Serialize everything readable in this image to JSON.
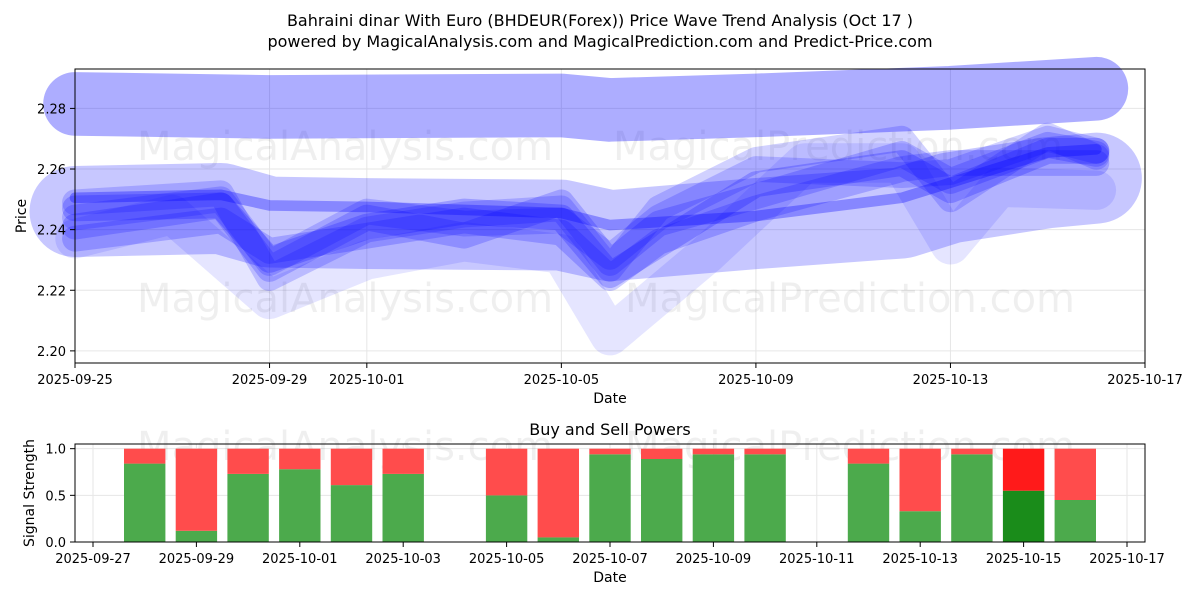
{
  "title": {
    "line1": "Bahraini dinar With Euro (BHDEUR(Forex)) Price Wave Trend Analysis (Oct 17 )",
    "line2": "powered by MagicalAnalysis.com and MagicalPrediction.com and Predict-Price.com"
  },
  "watermarks": [
    "MagicalAnalysis.com",
    "MagicalPrediction.com"
  ],
  "colors": {
    "band": "#0000ff",
    "buy": "#4caa4c",
    "sell": "#ff4c4c",
    "buy_highlight": "#1a8c1a",
    "sell_highlight": "#ff1a1a"
  },
  "chart_data": [
    {
      "type": "line",
      "title": "Price Wave Trend",
      "xlabel": "Date",
      "ylabel": "Price",
      "xlim": [
        "2025-09-25",
        "2025-10-17"
      ],
      "ylim": [
        2.196,
        2.293
      ],
      "x_ticks": [
        "2025-09-25",
        "2025-09-29",
        "2025-10-01",
        "2025-10-05",
        "2025-10-09",
        "2025-10-13",
        "2025-10-17"
      ],
      "y_ticks": [
        "2.20",
        "2.22",
        "2.24",
        "2.26",
        "2.28"
      ],
      "grid": true,
      "series": [
        {
          "name": "upper_band",
          "x": [
            "2025-09-25",
            "2025-09-29",
            "2025-10-05",
            "2025-10-06",
            "2025-10-09",
            "2025-10-13",
            "2025-10-16"
          ],
          "values": [
            2.2815,
            2.2805,
            2.281,
            2.2795,
            2.281,
            2.2835,
            2.2865
          ],
          "width": 0.021,
          "opacity": 0.32
        },
        {
          "name": "main_trend",
          "x": [
            "2025-09-25",
            "2025-09-28",
            "2025-09-29",
            "2025-10-01",
            "2025-10-05",
            "2025-10-06",
            "2025-10-09",
            "2025-10-12",
            "2025-10-13",
            "2025-10-15",
            "2025-10-16"
          ],
          "values": [
            2.246,
            2.247,
            2.2425,
            2.242,
            2.2415,
            2.238,
            2.242,
            2.2455,
            2.2505,
            2.2555,
            2.257
          ],
          "width": 0.03,
          "opacity": 0.22
        },
        {
          "name": "short_wave_1",
          "x": [
            "2025-09-25",
            "2025-09-28",
            "2025-09-29",
            "2025-10-01",
            "2025-10-03",
            "2025-10-05",
            "2025-10-06",
            "2025-10-07",
            "2025-10-09",
            "2025-10-12",
            "2025-10-13",
            "2025-10-15",
            "2025-10-16"
          ],
          "values": [
            2.247,
            2.248,
            2.23,
            2.241,
            2.246,
            2.244,
            2.225,
            2.235,
            2.255,
            2.262,
            2.253,
            2.266,
            2.266
          ],
          "width": 0.0085,
          "opacity": 0.22
        },
        {
          "name": "short_wave_2",
          "x": [
            "2025-09-25",
            "2025-09-28",
            "2025-09-29",
            "2025-10-01",
            "2025-10-03",
            "2025-10-05",
            "2025-10-06",
            "2025-10-07",
            "2025-10-09",
            "2025-10-12",
            "2025-10-13",
            "2025-10-15",
            "2025-10-16"
          ],
          "values": [
            2.241,
            2.248,
            2.227,
            2.244,
            2.238,
            2.249,
            2.229,
            2.242,
            2.251,
            2.265,
            2.256,
            2.268,
            2.265
          ],
          "width": 0.0085,
          "opacity": 0.2
        },
        {
          "name": "short_wave_3",
          "x": [
            "2025-09-25",
            "2025-09-28",
            "2025-09-29",
            "2025-10-01",
            "2025-10-03",
            "2025-10-05",
            "2025-10-06",
            "2025-10-07",
            "2025-10-09",
            "2025-10-12",
            "2025-10-13",
            "2025-10-15",
            "2025-10-16"
          ],
          "values": [
            2.237,
            2.243,
            2.233,
            2.238,
            2.243,
            2.239,
            2.224,
            2.236,
            2.247,
            2.26,
            2.262,
            2.262,
            2.262
          ],
          "width": 0.0085,
          "opacity": 0.2
        },
        {
          "name": "short_wave_4",
          "x": [
            "2025-09-25",
            "2025-09-28",
            "2025-09-29",
            "2025-10-01",
            "2025-10-03",
            "2025-10-05",
            "2025-10-06",
            "2025-10-07",
            "2025-10-09",
            "2025-10-12",
            "2025-10-13",
            "2025-10-15",
            "2025-10-16"
          ],
          "values": [
            2.244,
            2.25,
            2.229,
            2.246,
            2.242,
            2.243,
            2.231,
            2.244,
            2.26,
            2.258,
            2.259,
            2.27,
            2.266
          ],
          "width": 0.0085,
          "opacity": 0.18
        },
        {
          "name": "short_wave_5",
          "x": [
            "2025-09-25",
            "2025-09-28",
            "2025-09-29",
            "2025-10-01",
            "2025-10-03",
            "2025-10-05",
            "2025-10-06",
            "2025-10-07",
            "2025-10-09",
            "2025-10-12",
            "2025-10-13",
            "2025-10-15",
            "2025-10-16"
          ],
          "values": [
            2.249,
            2.252,
            2.224,
            2.24,
            2.245,
            2.247,
            2.227,
            2.247,
            2.263,
            2.27,
            2.25,
            2.271,
            2.264
          ],
          "width": 0.0085,
          "opacity": 0.18
        },
        {
          "name": "wide_wave",
          "x": [
            "2025-09-25",
            "2025-09-27",
            "2025-09-29",
            "2025-10-01",
            "2025-10-03",
            "2025-10-05",
            "2025-10-06",
            "2025-10-08",
            "2025-10-10",
            "2025-10-12",
            "2025-10-13",
            "2025-10-14",
            "2025-10-16"
          ],
          "values": [
            2.237,
            2.245,
            2.217,
            2.23,
            2.236,
            2.232,
            2.205,
            2.232,
            2.262,
            2.262,
            2.235,
            2.254,
            2.253
          ],
          "width": 0.013,
          "opacity": 0.1
        },
        {
          "name": "center_line",
          "x": [
            "2025-09-25",
            "2025-09-28",
            "2025-09-29",
            "2025-10-01",
            "2025-10-05",
            "2025-10-06",
            "2025-10-09",
            "2025-10-12",
            "2025-10-13",
            "2025-10-15",
            "2025-10-16"
          ],
          "values": [
            2.2505,
            2.2515,
            2.248,
            2.2475,
            2.2455,
            2.2415,
            2.2445,
            2.2505,
            2.2555,
            2.2655,
            2.2665
          ],
          "width": 0.0035,
          "opacity": 0.32
        }
      ]
    },
    {
      "type": "bar",
      "title": "Buy and Sell Powers",
      "xlabel": "Date",
      "ylabel": "Signal Strength",
      "xlim": [
        "2025-09-27",
        "2025-10-17"
      ],
      "ylim": [
        0,
        1.05
      ],
      "x_ticks": [
        "2025-09-27",
        "2025-09-29",
        "2025-10-01",
        "2025-10-03",
        "2025-10-05",
        "2025-10-07",
        "2025-10-09",
        "2025-10-11",
        "2025-10-13",
        "2025-10-15",
        "2025-10-17"
      ],
      "y_ticks": [
        "0.0",
        "0.5",
        "1.0"
      ],
      "dates": [
        "2025-09-28",
        "2025-09-29",
        "2025-09-30",
        "2025-10-01",
        "2025-10-02",
        "2025-10-03",
        "2025-10-05",
        "2025-10-06",
        "2025-10-07",
        "2025-10-08",
        "2025-10-09",
        "2025-10-10",
        "2025-10-12",
        "2025-10-13",
        "2025-10-14",
        "2025-10-15",
        "2025-10-16"
      ],
      "series": [
        {
          "name": "Buy",
          "values": [
            0.84,
            0.12,
            0.73,
            0.78,
            0.61,
            0.73,
            0.5,
            0.05,
            0.94,
            0.89,
            0.94,
            0.94,
            0.84,
            0.33,
            0.94,
            0.55,
            0.45
          ]
        },
        {
          "name": "Sell",
          "values": [
            0.16,
            0.88,
            0.27,
            0.22,
            0.39,
            0.27,
            0.5,
            0.95,
            0.06,
            0.11,
            0.06,
            0.06,
            0.16,
            0.67,
            0.06,
            0.45,
            0.55
          ]
        }
      ],
      "highlight_date": "2025-10-15"
    }
  ]
}
